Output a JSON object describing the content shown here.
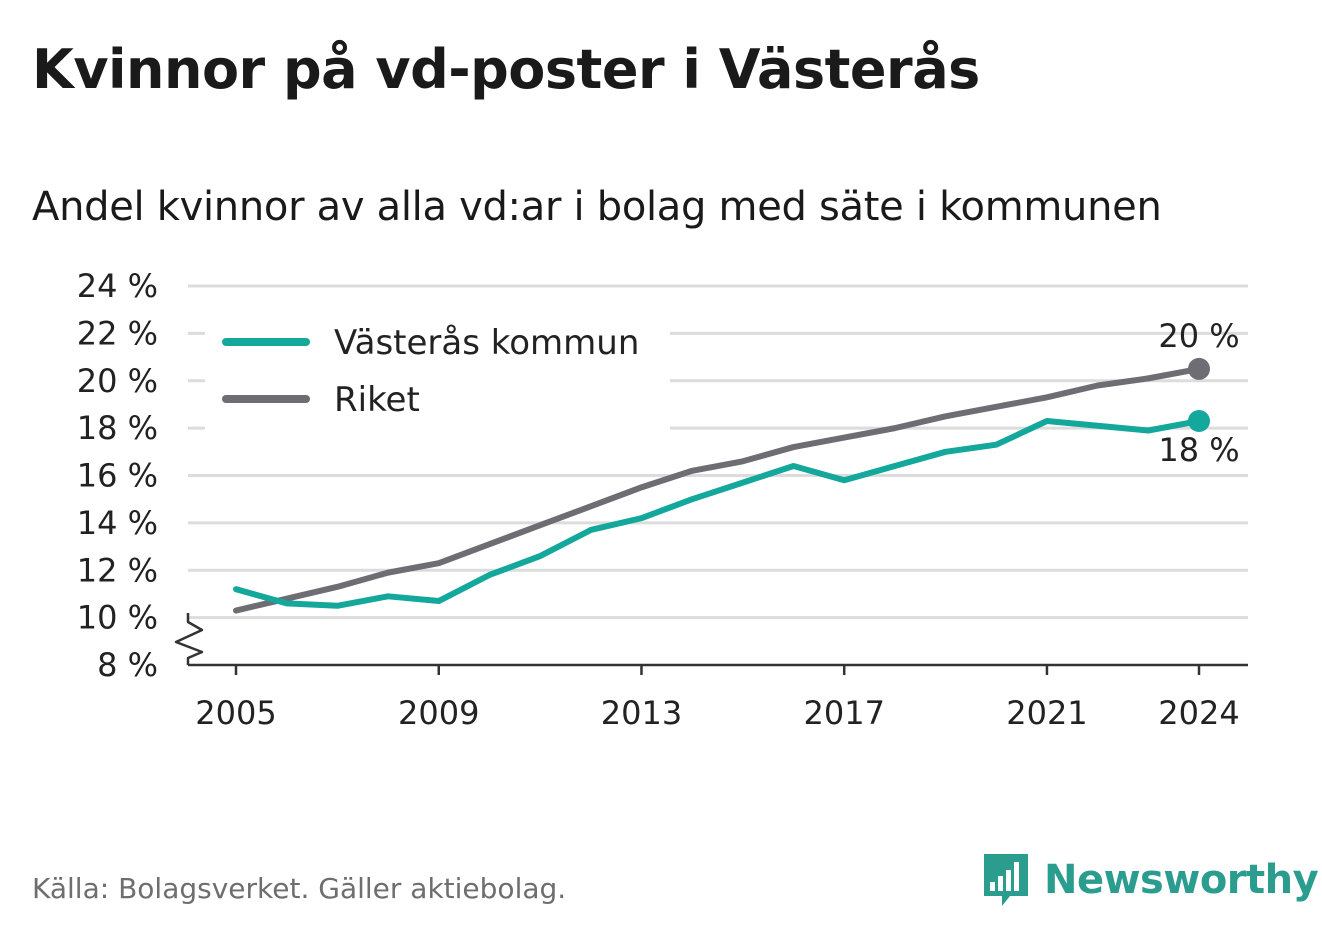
{
  "title": "Kvinnor på vd-poster i Västerås",
  "subtitle": "Andel kvinnor av alla vd:ar i bolag med säte i kommunen",
  "source": "Källa: Bolagsverket. Gäller aktiebolag.",
  "logo": {
    "text": "Newsworthy",
    "icon": "newsworthy-logo-icon",
    "color": "#2a9d8f"
  },
  "chart_data": {
    "type": "line",
    "x": [
      2005,
      2006,
      2007,
      2008,
      2009,
      2010,
      2011,
      2012,
      2013,
      2014,
      2015,
      2016,
      2017,
      2018,
      2019,
      2020,
      2021,
      2022,
      2023,
      2024
    ],
    "x_ticks": [
      2005,
      2009,
      2013,
      2017,
      2021,
      2024
    ],
    "x_tick_labels": [
      "2005",
      "2009",
      "2013",
      "2017",
      "2021",
      "2024"
    ],
    "y_ticks": [
      8,
      10,
      12,
      14,
      16,
      18,
      20,
      22,
      24
    ],
    "y_tick_labels": [
      "8 %",
      "10 %",
      "12 %",
      "14 %",
      "16 %",
      "18 %",
      "20 %",
      "22 %",
      "24 %"
    ],
    "ylim": [
      8,
      24
    ],
    "xlim": [
      2005,
      2024
    ],
    "axis_break": true,
    "grid": true,
    "legend_position": "top-left",
    "series": [
      {
        "name": "Västerås kommun",
        "color": "#14a79c",
        "values": [
          11.2,
          10.6,
          10.5,
          10.9,
          10.7,
          11.8,
          12.6,
          13.7,
          14.2,
          15.0,
          15.7,
          16.4,
          15.8,
          16.4,
          17.0,
          17.3,
          18.3,
          18.1,
          17.9,
          18.3
        ],
        "end_label": "18 %"
      },
      {
        "name": "Riket",
        "color": "#6d6d73",
        "values": [
          10.3,
          10.8,
          11.3,
          11.9,
          12.3,
          13.1,
          13.9,
          14.7,
          15.5,
          16.2,
          16.6,
          17.2,
          17.6,
          18.0,
          18.5,
          18.9,
          19.3,
          19.8,
          20.1,
          20.5
        ],
        "end_label": "20 %"
      }
    ]
  }
}
